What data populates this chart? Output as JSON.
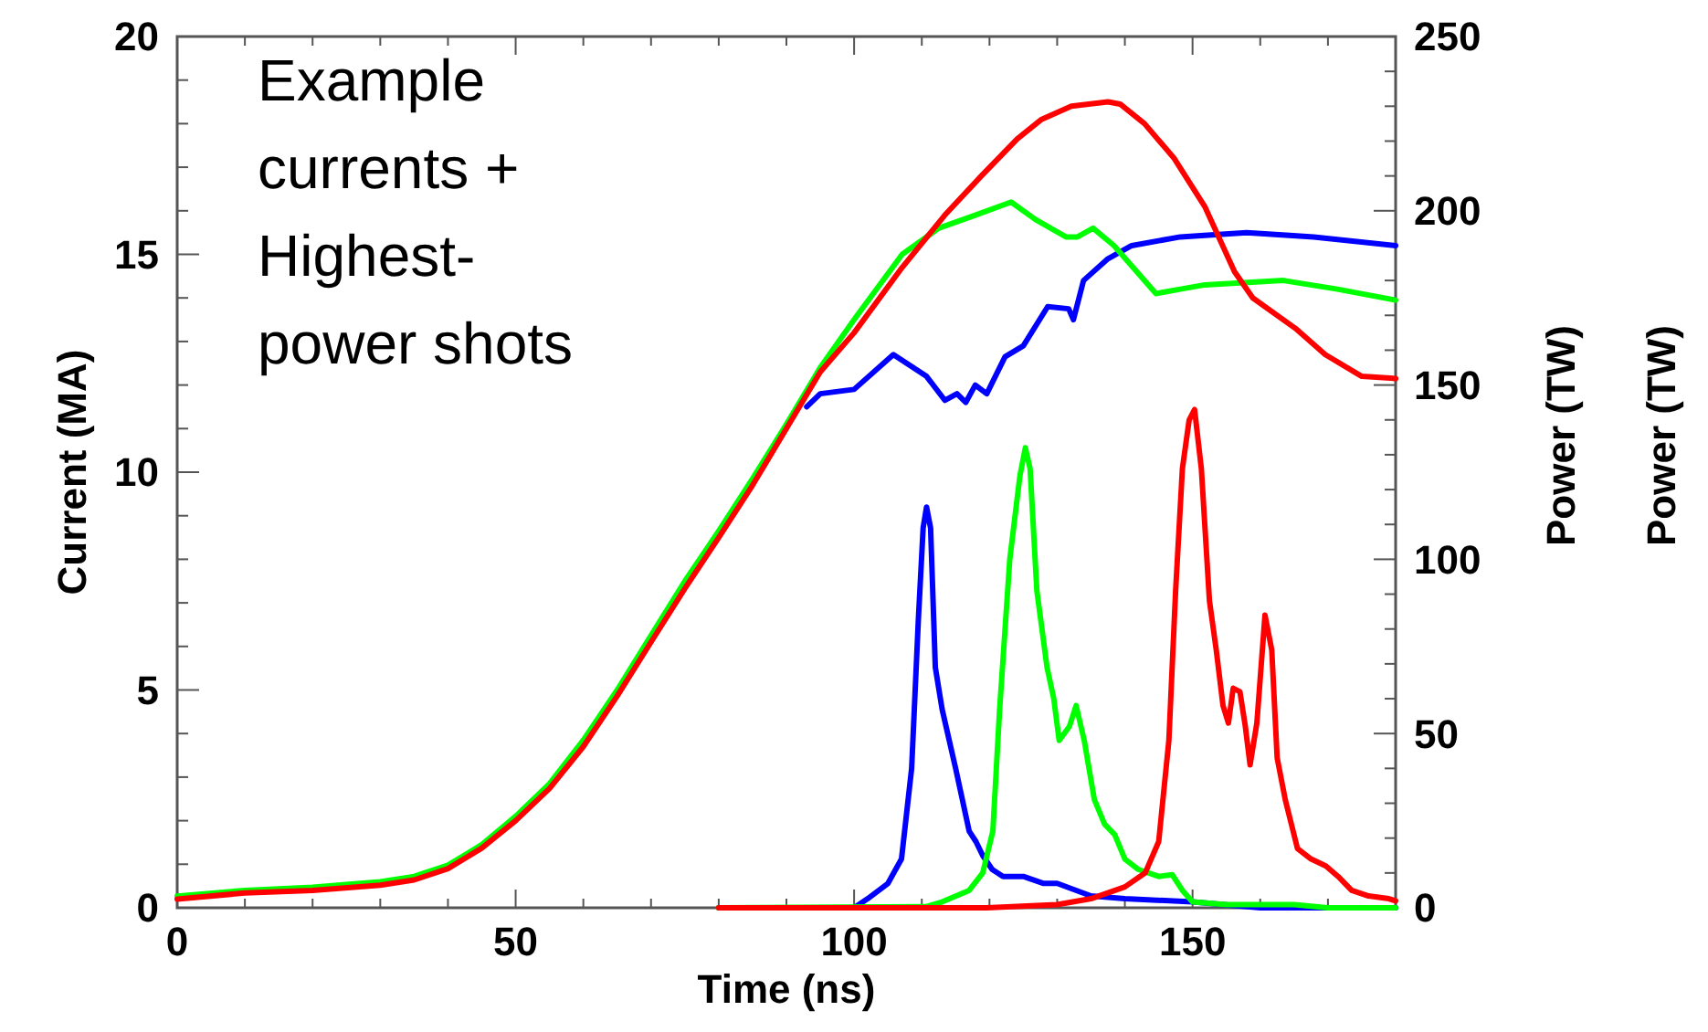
{
  "chart_data": {
    "type": "line",
    "xlabel": "Time (ns)",
    "ylabel": "Current (MA)",
    "y2label": "Power (TW)",
    "annotations": [
      "Example\ncurrents +\nHighest-\npower shots",
      "Power (TW)"
    ],
    "xlim": [
      0,
      180
    ],
    "ylim": [
      0,
      20
    ],
    "y2lim": [
      0,
      250
    ],
    "xticks": [
      0,
      {
        "value": 10,
        "label": null
      },
      {
        "value": 20,
        "label": null
      },
      {
        "value": 30,
        "label": null
      },
      {
        "value": 40,
        "label": null
      },
      50,
      {
        "value": 60,
        "label": null
      },
      {
        "value": 70,
        "label": null
      },
      {
        "value": 80,
        "label": null
      },
      {
        "value": 90,
        "label": null
      },
      100,
      {
        "value": 110,
        "label": null
      },
      {
        "value": 120,
        "label": null
      },
      {
        "value": 130,
        "label": null
      },
      {
        "value": 140,
        "label": null
      },
      150,
      {
        "value": 160,
        "label": null
      },
      {
        "value": 170,
        "label": null
      }
    ],
    "yticks": [
      0,
      {
        "value": 1,
        "label": null
      },
      {
        "value": 2,
        "label": null
      },
      {
        "value": 3,
        "label": null
      },
      {
        "value": 4,
        "label": null
      },
      5,
      {
        "value": 6,
        "label": null
      },
      {
        "value": 7,
        "label": null
      },
      {
        "value": 8,
        "label": null
      },
      {
        "value": 9,
        "label": null
      },
      10,
      {
        "value": 11,
        "label": null
      },
      {
        "value": 12,
        "label": null
      },
      {
        "value": 13,
        "label": null
      },
      {
        "value": 14,
        "label": null
      },
      15,
      {
        "value": 16,
        "label": null
      },
      {
        "value": 17,
        "label": null
      },
      {
        "value": 18,
        "label": null
      },
      {
        "value": 19,
        "label": null
      },
      20
    ],
    "y2ticks": [
      0,
      {
        "value": 10,
        "label": null
      },
      {
        "value": 20,
        "label": null
      },
      {
        "value": 30,
        "label": null
      },
      {
        "value": 40,
        "label": null
      },
      50,
      {
        "value": 60,
        "label": null
      },
      {
        "value": 70,
        "label": null
      },
      {
        "value": 80,
        "label": null
      },
      {
        "value": 90,
        "label": null
      },
      100,
      {
        "value": 110,
        "label": null
      },
      {
        "value": 120,
        "label": null
      },
      {
        "value": 130,
        "label": null
      },
      {
        "value": 140,
        "label": null
      },
      150,
      {
        "value": 160,
        "label": null
      },
      {
        "value": 170,
        "label": null
      },
      {
        "value": 180,
        "label": null
      },
      {
        "value": 190,
        "label": null
      },
      200,
      {
        "value": 210,
        "label": null
      },
      {
        "value": 220,
        "label": null
      },
      {
        "value": 230,
        "label": null
      },
      {
        "value": 240,
        "label": null
      },
      250
    ],
    "grid": false,
    "line_style": "solid",
    "marker": "none",
    "series": [
      {
        "color": "#0000ff",
        "x": [
          93,
          95,
          100,
          105.8,
          110.7,
          113.4,
          115.2,
          116.5,
          117.9,
          119.6,
          122.3,
          125,
          128.6,
          131.7,
          132.4,
          133.9,
          137.5,
          141,
          148.2,
          158,
          167.9,
          180
        ],
        "values": [
          11.5,
          11.8,
          11.9,
          12.7,
          12.2,
          11.65,
          11.8,
          11.6,
          12.0,
          11.8,
          12.65,
          12.9,
          13.8,
          13.75,
          13.5,
          14.4,
          14.9,
          15.2,
          15.4,
          15.5,
          15.4,
          15.2
        ]
      },
      {
        "color": "#00ff00",
        "x": [
          0,
          10,
          20,
          30,
          35,
          40,
          45,
          50,
          55,
          60,
          65,
          70,
          75,
          80,
          85,
          90,
          95,
          100,
          107.1,
          112.5,
          117.9,
          123.2,
          126.8,
          131.3,
          133,
          135.3,
          138.4,
          144.6,
          148.2,
          151.8,
          163.4,
          171.4,
          180
        ],
        "values": [
          0.27,
          0.4,
          0.47,
          0.6,
          0.72,
          0.98,
          1.45,
          2.1,
          2.85,
          3.85,
          5.0,
          6.25,
          7.5,
          8.65,
          9.85,
          11.1,
          12.4,
          13.5,
          15.0,
          15.6,
          15.9,
          16.2,
          15.8,
          15.4,
          15.4,
          15.6,
          15.2,
          14.1,
          14.2,
          14.3,
          14.4,
          14.2,
          13.95
        ]
      },
      {
        "color": "#ff0000",
        "x": [
          0,
          10,
          20,
          30,
          35,
          40,
          45,
          50,
          55,
          60,
          65,
          70,
          75,
          80,
          85,
          90,
          95,
          100,
          107.1,
          113.4,
          118.8,
          124.1,
          127.7,
          132.1,
          137.5,
          139.3,
          142.9,
          147.3,
          151.8,
          156.2,
          158.9,
          165.2,
          169.6,
          175,
          180
        ],
        "values": [
          0.2,
          0.34,
          0.4,
          0.52,
          0.64,
          0.9,
          1.37,
          2.0,
          2.74,
          3.7,
          4.86,
          6.1,
          7.33,
          8.5,
          9.7,
          11.0,
          12.3,
          13.2,
          14.7,
          15.9,
          16.8,
          17.65,
          18.1,
          18.4,
          18.5,
          18.45,
          18.0,
          17.2,
          16.1,
          14.6,
          14.0,
          13.3,
          12.7,
          12.2,
          12.15
        ]
      },
      {
        "color": "#0000ff",
        "axis": "y2",
        "x": [
          80,
          100,
          102,
          105,
          107,
          108.5,
          109.5,
          110.2,
          110.7,
          111.3,
          112,
          113,
          115,
          117,
          118,
          119,
          120.4,
          122,
          125,
          128,
          130,
          135,
          140,
          150,
          160,
          180
        ],
        "values": [
          0,
          0,
          2.6,
          7,
          14,
          40,
          83,
          109,
          115,
          109,
          69,
          57,
          40,
          22,
          19,
          15,
          11,
          9,
          9,
          7,
          7,
          3.4,
          2.6,
          1.7,
          0,
          0
        ]
      },
      {
        "color": "#00ff00",
        "axis": "y2",
        "x": [
          80,
          110.6,
          113,
          117,
          119,
          120.5,
          121.5,
          123,
          124.5,
          125.3,
          126,
          127,
          128.5,
          129.5,
          130.3,
          131.8,
          132.8,
          134,
          135.5,
          137,
          138.5,
          140,
          142,
          145,
          147,
          148.5,
          150,
          155,
          165,
          170,
          180
        ],
        "values": [
          0,
          0.3,
          1.7,
          5,
          10,
          22,
          57,
          100,
          124,
          132,
          126,
          91,
          69,
          60,
          48,
          52,
          58,
          48,
          31,
          24,
          21,
          14,
          11,
          9,
          9.5,
          5,
          1.7,
          0.9,
          0.9,
          0,
          0
        ]
      },
      {
        "color": "#ff0000",
        "axis": "y2",
        "x": [
          80,
          119.6,
          130,
          135,
          140,
          143,
          145,
          146.5,
          147.5,
          148.5,
          149.5,
          150.3,
          151.3,
          152.5,
          153.5,
          154.5,
          155.3,
          156,
          157,
          157.8,
          158.5,
          159.5,
          160.7,
          161.7,
          162.5,
          163.7,
          165.5,
          167.5,
          169.7,
          171.5,
          173.5,
          176,
          179,
          180
        ],
        "values": [
          0,
          0,
          0.9,
          2.6,
          6,
          10,
          19,
          48,
          91,
          126,
          140,
          143,
          126,
          88,
          74,
          58,
          53,
          63,
          62,
          52,
          41,
          53,
          84,
          74,
          43,
          31,
          17,
          14,
          12,
          9,
          5,
          3.4,
          2.6,
          2
        ]
      }
    ]
  }
}
